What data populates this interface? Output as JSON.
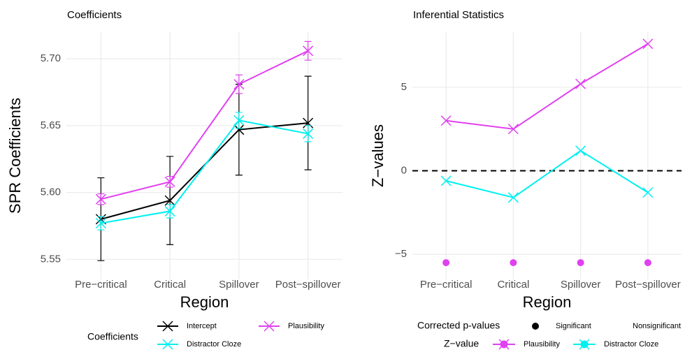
{
  "chart_data": [
    {
      "type": "line",
      "title": "Coefficients",
      "xlabel": "Region",
      "ylabel": "SPR Coefficients",
      "categories": [
        "Pre−critical",
        "Critical",
        "Spillover",
        "Post−spillover"
      ],
      "series": [
        {
          "name": "Intercept",
          "color": "#000000",
          "values": [
            5.58,
            5.594,
            5.647,
            5.652
          ],
          "errors": [
            0.031,
            0.033,
            0.034,
            0.035
          ]
        },
        {
          "name": "Plausibility",
          "color": "#e040f0",
          "values": [
            5.595,
            5.608,
            5.681,
            5.706
          ],
          "errors": [
            0.004,
            0.004,
            0.007,
            0.007
          ]
        },
        {
          "name": "Distractor Cloze",
          "color": "#00f0f0",
          "values": [
            5.577,
            5.586,
            5.654,
            5.644
          ],
          "errors": [
            0.005,
            0.005,
            0.006,
            0.006
          ]
        }
      ],
      "ylim": [
        5.535,
        5.72
      ],
      "yticks": [
        5.55,
        {
          "value": 5.6,
          "label": "5.60"
        },
        5.65,
        {
          "value": 5.7,
          "label": "5.70"
        }
      ],
      "grid": true,
      "legend": {
        "title": "Coefficients"
      }
    },
    {
      "type": "line",
      "title": "Inferential Statistics",
      "xlabel": "Region",
      "ylabel": "Z−values",
      "categories": [
        "Pre−critical",
        "Critical",
        "Spillover",
        "Post−spillover"
      ],
      "series": [
        {
          "name": "Plausibility",
          "color": "#e040f0",
          "values": [
            3.0,
            2.5,
            5.2,
            7.6
          ]
        },
        {
          "name": "Distractor Cloze",
          "color": "#00f0f0",
          "values": [
            -0.6,
            -1.6,
            1.2,
            -1.3
          ]
        }
      ],
      "significance": {
        "values": [
          -5.5,
          -5.5,
          -5.5,
          -5.5
        ],
        "color": "#e040f0"
      },
      "hline": 0,
      "ylim": [
        -6.5,
        8.3
      ],
      "yticks": [
        {
          "value": -5,
          "label": "−5"
        },
        0,
        5
      ],
      "grid": true,
      "legend": {
        "title": "Z−value",
        "pvalue_title": "Corrected p-values",
        "pvalue_items": [
          "Significant",
          "Nonsignificant"
        ]
      }
    }
  ]
}
